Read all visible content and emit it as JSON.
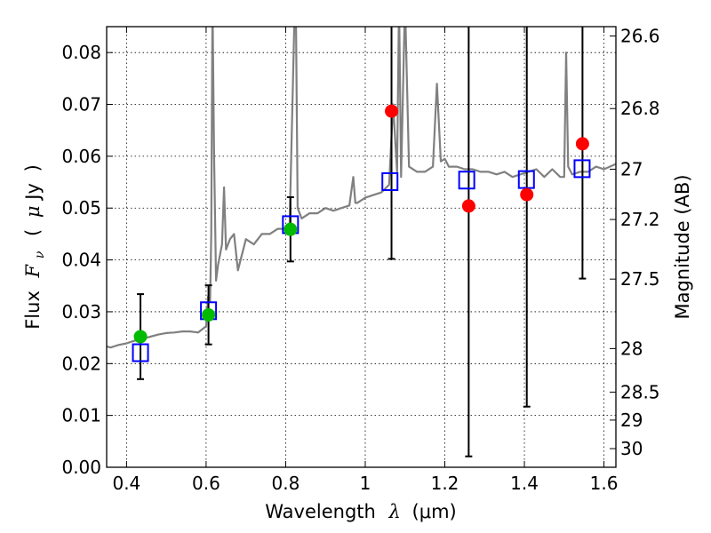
{
  "chart_data": {
    "type": "scatter",
    "title": "",
    "xlabel": "Wavelength",
    "xlabel_symbol": "λ",
    "xlabel_unit": "(μm)",
    "ylabel": "Flux",
    "ylabel_symbol": "F",
    "ylabel_subscript": "ν",
    "ylabel_unit_open": "(",
    "ylabel_unit_mu": "μ",
    "ylabel_unit": "Jy",
    "ylabel_unit_close": ")",
    "y2label": "Magnitude (AB)",
    "xlim": [
      0.35,
      1.63
    ],
    "ylim": [
      0.0,
      0.085
    ],
    "grid": true,
    "x_ticks": [
      0.4,
      0.6,
      0.8,
      1.0,
      1.2,
      1.4,
      1.6
    ],
    "x_tick_labels": [
      "0.4",
      "0.6",
      "0.8",
      "1",
      "1.2",
      "1.4",
      "1.6"
    ],
    "y_ticks": [
      0.0,
      0.01,
      0.02,
      0.03,
      0.04,
      0.05,
      0.06,
      0.07,
      0.08
    ],
    "y_tick_labels": [
      "0.00",
      "0.01",
      "0.02",
      "0.03",
      "0.04",
      "0.05",
      "0.06",
      "0.07",
      "0.08"
    ],
    "y2_ticks": [
      {
        "label": "26.6",
        "flux": 0.0832
      },
      {
        "label": "26.8",
        "flux": 0.0692
      },
      {
        "label": "27",
        "flux": 0.0575
      },
      {
        "label": "27.2",
        "flux": 0.0478
      },
      {
        "label": "27.5",
        "flux": 0.0363
      },
      {
        "label": "28",
        "flux": 0.0229
      },
      {
        "label": "28.5",
        "flux": 0.0145
      },
      {
        "label": "29",
        "flux": 0.0091
      },
      {
        "label": "30",
        "flux": 0.0036
      }
    ],
    "series": [
      {
        "role": "model_spectrum",
        "color": "#808080",
        "x": [
          0.35,
          0.36,
          0.38,
          0.4,
          0.42,
          0.44,
          0.46,
          0.48,
          0.5,
          0.52,
          0.54,
          0.56,
          0.58,
          0.6,
          0.605,
          0.61,
          0.613,
          0.616,
          0.62,
          0.625,
          0.63,
          0.64,
          0.645,
          0.65,
          0.66,
          0.67,
          0.68,
          0.7,
          0.72,
          0.74,
          0.76,
          0.78,
          0.8,
          0.81,
          0.82,
          0.823,
          0.826,
          0.83,
          0.84,
          0.86,
          0.88,
          0.9,
          0.92,
          0.94,
          0.96,
          0.97,
          0.975,
          0.98,
          1.0,
          1.02,
          1.04,
          1.06,
          1.07,
          1.08,
          1.085,
          1.09,
          1.1,
          1.11,
          1.13,
          1.15,
          1.17,
          1.18,
          1.19,
          1.2,
          1.21,
          1.23,
          1.25,
          1.27,
          1.29,
          1.31,
          1.33,
          1.35,
          1.37,
          1.39,
          1.41,
          1.43,
          1.45,
          1.47,
          1.49,
          1.5,
          1.505,
          1.51,
          1.52,
          1.54,
          1.56,
          1.58,
          1.6,
          1.63
        ],
        "y": [
          0.0233,
          0.0231,
          0.0236,
          0.0239,
          0.0244,
          0.0248,
          0.0252,
          0.0256,
          0.0259,
          0.026,
          0.0262,
          0.0262,
          0.026,
          0.0272,
          0.033,
          0.032,
          0.045,
          0.09,
          0.06,
          0.036,
          0.039,
          0.043,
          0.054,
          0.042,
          0.044,
          0.045,
          0.038,
          0.044,
          0.043,
          0.045,
          0.045,
          0.046,
          0.046,
          0.047,
          0.08,
          0.09,
          0.085,
          0.05,
          0.048,
          0.049,
          0.049,
          0.05,
          0.0495,
          0.05,
          0.0505,
          0.056,
          0.051,
          0.051,
          0.052,
          0.0525,
          0.053,
          0.0545,
          0.07,
          0.057,
          0.09,
          0.056,
          0.09,
          0.058,
          0.057,
          0.057,
          0.058,
          0.074,
          0.059,
          0.0595,
          0.058,
          0.058,
          0.0575,
          0.0575,
          0.057,
          0.057,
          0.0565,
          0.057,
          0.056,
          0.0565,
          0.057,
          0.0575,
          0.056,
          0.0575,
          0.056,
          0.056,
          0.08,
          0.058,
          0.0565,
          0.057,
          0.057,
          0.058,
          0.0575,
          0.0585
        ]
      },
      {
        "role": "model_photometry",
        "marker": "open-square",
        "color": "#0000ff",
        "x": [
          0.435,
          0.606,
          0.812,
          1.062,
          1.255,
          1.405,
          1.545
        ],
        "y": [
          0.0221,
          0.0302,
          0.0468,
          0.0551,
          0.0554,
          0.0555,
          0.0576
        ]
      },
      {
        "role": "observed_detections",
        "marker": "filled-circle",
        "color": "#00bb00",
        "x": [
          0.435,
          0.606,
          0.812
        ],
        "y": [
          0.0252,
          0.0294,
          0.0459
        ],
        "yerr_low": [
          0.017,
          0.0237,
          0.0397
        ],
        "yerr_high": [
          0.0334,
          0.0351,
          0.0521
        ]
      },
      {
        "role": "observed_upper",
        "marker": "filled-circle",
        "color": "#ff0000",
        "x": [
          1.066,
          1.26,
          1.406,
          1.546
        ],
        "y": [
          0.0687,
          0.0504,
          0.0526,
          0.0624
        ],
        "yerr_low": [
          0.0402,
          0.0021,
          0.0117,
          0.0364
        ],
        "yerr_high": [
          0.085,
          0.085,
          0.085,
          0.085
        ]
      }
    ]
  }
}
